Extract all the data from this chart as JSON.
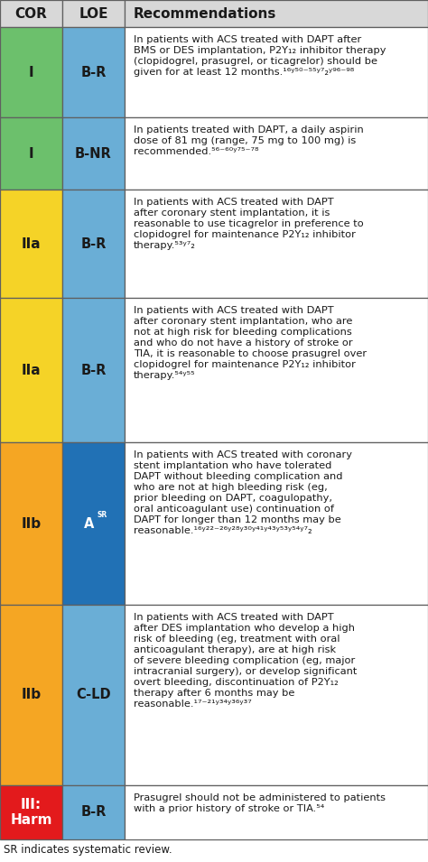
{
  "row_texts": [
    "In patients with ACS treated with DAPT after\nBMS or DES implantation, P2Y₁₂ inhibitor therapy\n(clopidogrel, prasugrel, or ticagrelor) should be\ngiven for at least 12 months.¹⁶ʸ⁵⁰⁻⁵⁵ʸ⁷₂ʸ⁹⁶⁻⁹⁸",
    "In patients treated with DAPT, a daily aspirin\ndose of 81 mg (range, 75 mg to 100 mg) is\nrecommended.⁵⁶⁻⁶⁰ʸ⁷⁵⁻⁷⁸",
    "In patients with ACS treated with DAPT\nafter coronary stent implantation, it is\nreasonable to use ticagrelor in preference to\nclopidogrel for maintenance P2Y₁₂ inhibitor\ntherapy.⁵³ʸ⁷₂",
    "In patients with ACS treated with DAPT\nafter coronary stent implantation, who are\nnot at high risk for bleeding complications\nand who do not have a history of stroke or\nTIA, it is reasonable to choose prasugrel over\nclopidogrel for maintenance P2Y₁₂ inhibitor\ntherapy.⁵⁴ʸ⁵⁵",
    "In patients with ACS treated with coronary\nstent implantation who have tolerated\nDAPT without bleeding complication and\nwho are not at high bleeding risk (eg,\nprior bleeding on DAPT, coagulopathy,\noral anticoagulant use) continuation of\nDAPT for longer than 12 months may be\nreasonable.¹⁶ʸ²²⁻²⁶ʸ²⁸ʸ³⁰ʸ⁴¹ʸ⁴³ʸ⁵³ʸ⁵⁴ʸ⁷₂",
    "In patients with ACS treated with DAPT\nafter DES implantation who develop a high\nrisk of bleeding (eg, treatment with oral\nanticoagulant therapy), are at high risk\nof severe bleeding complication (eg, major\nintracranial surgery), or develop significant\novert bleeding, discontinuation of P2Y₁₂\ntherapy after 6 months may be\nreasonable.¹⁷⁻²¹ʸ³⁴ʸ³⁶ʸ³⁷",
    "Prasugrel should not be administered to patients\nwith a prior history of stroke or TIA.⁵⁴"
  ],
  "cor_colors": [
    "#6cc06c",
    "#6cc06c",
    "#f5d327",
    "#f5d327",
    "#f5a623",
    "#f5a623",
    "#e31a1c"
  ],
  "loe_colors": [
    "#6aaed6",
    "#6aaed6",
    "#6aaed6",
    "#6aaed6",
    "#2171b5",
    "#6aaed6",
    "#6aaed6"
  ],
  "cor_labels": [
    "I",
    "I",
    "IIa",
    "IIa",
    "IIb",
    "IIb",
    "III:\nHarm"
  ],
  "loe_labels": [
    "B-R",
    "B-NR",
    "B-R",
    "B-R",
    "A SR",
    "C-LD",
    "B-R"
  ],
  "loe_sr": [
    false,
    false,
    false,
    false,
    true,
    false,
    false
  ],
  "n_lines": [
    4,
    3,
    5,
    7,
    8,
    9,
    2
  ],
  "footer_text": "SR indicates systematic review.",
  "bg_color": "#ffffff",
  "border_color": "#606060",
  "header_bg": "#d8d8d8"
}
